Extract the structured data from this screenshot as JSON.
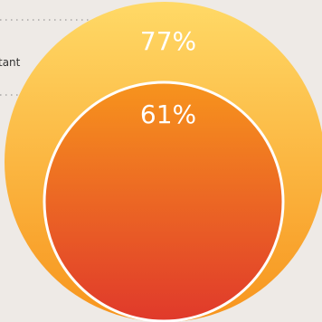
{
  "chart_data": {
    "type": "nested-circle",
    "series": [
      {
        "label": "tant",
        "value_label": "77%",
        "value": 77,
        "color_top": "#ffd966",
        "color_bottom": "#f7941d"
      },
      {
        "label": "",
        "value_label": "61%",
        "value": 61,
        "color_top": "#f7941d",
        "color_bottom": "#e0392b"
      }
    ],
    "leader_lines": true
  },
  "colors": {
    "background": "#eeeae6",
    "leader": "#9a9a9a",
    "inner_stroke": "#ffffff"
  }
}
